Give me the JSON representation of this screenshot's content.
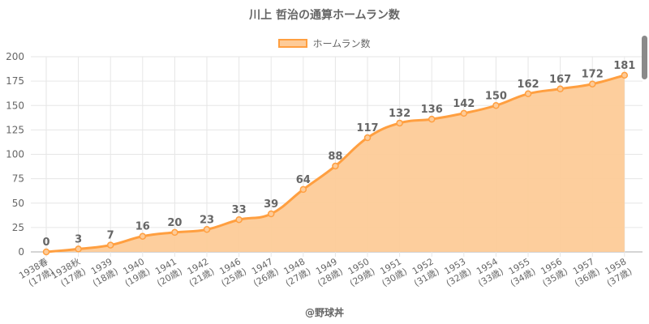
{
  "chart_data": {
    "type": "area",
    "title": "川上 哲治の通算ホームラン数",
    "legend": [
      "ホームラン数"
    ],
    "legend_position": "top",
    "categories": [
      "1938春",
      "1938秋",
      "1939",
      "1940",
      "1941",
      "1942",
      "1946",
      "1947",
      "1948",
      "1949",
      "1950",
      "1951",
      "1952",
      "1953",
      "1954",
      "1955",
      "1956",
      "1957",
      "1958"
    ],
    "ages": [
      "(17歳)",
      "(17歳)",
      "(18歳)",
      "(19歳)",
      "(20歳)",
      "(21歳)",
      "(25歳)",
      "(26歳)",
      "(27歳)",
      "(28歳)",
      "(29歳)",
      "(30歳)",
      "(31歳)",
      "(32歳)",
      "(33歳)",
      "(34歳)",
      "(35歳)",
      "(36歳)",
      "(37歳)"
    ],
    "values": [
      0,
      3,
      7,
      16,
      20,
      23,
      33,
      39,
      64,
      88,
      117,
      132,
      136,
      142,
      150,
      162,
      167,
      172,
      181
    ],
    "ylim": [
      0,
      200
    ],
    "yticks": [
      0,
      25,
      50,
      75,
      100,
      125,
      150,
      175,
      200
    ],
    "grid": true,
    "colors": {
      "line": "#ff9f40",
      "fill": "#fdcb98"
    }
  },
  "footer": "@野球丼"
}
